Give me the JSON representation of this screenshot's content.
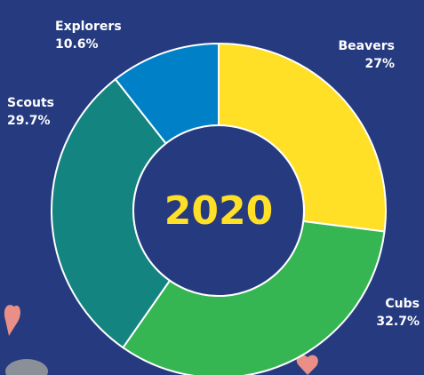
{
  "chart_data": {
    "type": "donut",
    "center_text": "2020",
    "categories": [
      "Beavers",
      "Cubs",
      "Scouts",
      "Explorers"
    ],
    "values": [
      27,
      32.7,
      29.7,
      10.6
    ],
    "value_labels": [
      "27%",
      "32.7%",
      "29.7%",
      "10.6%"
    ],
    "colors": [
      "#ffe026",
      "#36b653",
      "#148480",
      "#0081c7"
    ]
  }
}
